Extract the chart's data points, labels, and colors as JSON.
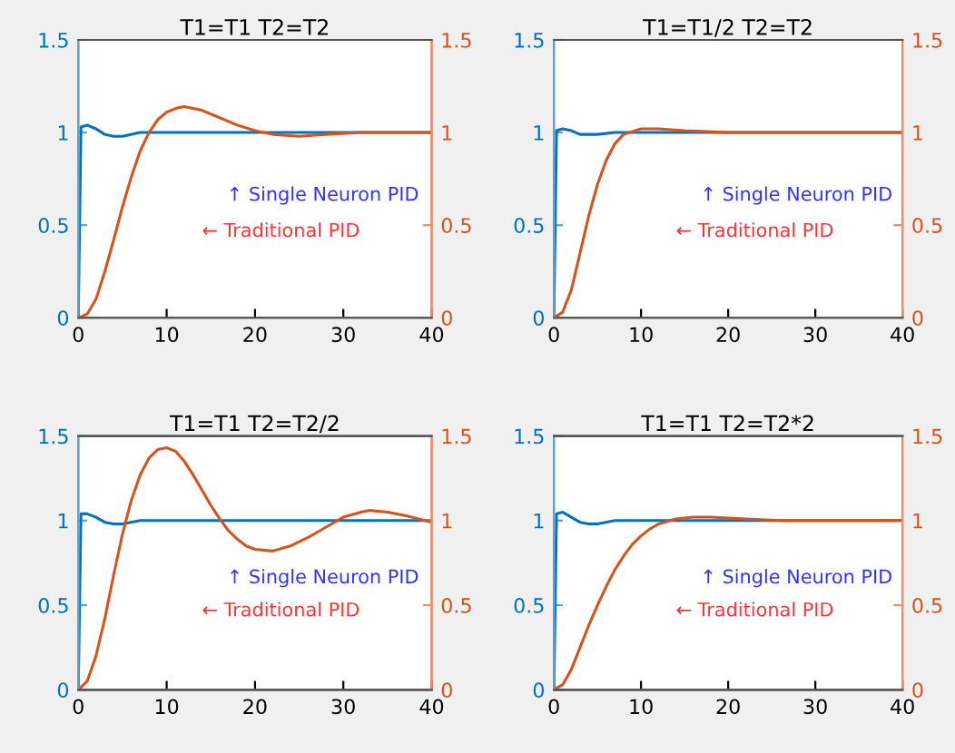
{
  "chart_data": [
    {
      "type": "line",
      "title": "T1=T1 T2=T2",
      "xlim": [
        0,
        40
      ],
      "xticks": [
        0,
        10,
        20,
        30,
        40
      ],
      "ylim": [
        0,
        1.5
      ],
      "yticks": [
        0,
        0.5,
        1,
        1.5
      ],
      "y2lim": [
        0,
        1.5
      ],
      "y2ticks": [
        0,
        0.5,
        1,
        1.5
      ],
      "annotations": [
        "↑ Single Neuron PID",
        "← Traditional PID"
      ],
      "series": [
        {
          "color": "#0072bd",
          "x": [
            0,
            0.3,
            1,
            2,
            3,
            4,
            5,
            7,
            10,
            40
          ],
          "values": [
            0,
            1.03,
            1.04,
            1.02,
            0.99,
            0.98,
            0.98,
            1.0,
            1.0,
            1.0
          ]
        },
        {
          "color": "#d95319",
          "axis": "y2",
          "x": [
            0,
            1,
            2,
            3,
            4,
            5,
            6,
            7,
            8,
            9,
            10,
            11,
            12,
            13,
            14,
            16,
            18,
            20,
            22,
            25,
            28,
            32,
            40
          ],
          "values": [
            0,
            0.02,
            0.1,
            0.25,
            0.42,
            0.6,
            0.76,
            0.9,
            1.0,
            1.07,
            1.11,
            1.13,
            1.14,
            1.13,
            1.12,
            1.08,
            1.04,
            1.01,
            0.99,
            0.98,
            0.99,
            1.0,
            1.0
          ]
        }
      ]
    },
    {
      "type": "line",
      "title": "T1=T1/2 T2=T2",
      "xlim": [
        0,
        40
      ],
      "xticks": [
        0,
        10,
        20,
        30,
        40
      ],
      "ylim": [
        0,
        1.5
      ],
      "yticks": [
        0,
        0.5,
        1,
        1.5
      ],
      "y2lim": [
        0,
        1.5
      ],
      "y2ticks": [
        0,
        0.5,
        1,
        1.5
      ],
      "annotations": [
        "↑ Single Neuron PID",
        "← Traditional PID"
      ],
      "series": [
        {
          "color": "#0072bd",
          "x": [
            0,
            0.3,
            1,
            2,
            3,
            4,
            5,
            7,
            10,
            40
          ],
          "values": [
            0,
            1.01,
            1.02,
            1.01,
            0.99,
            0.99,
            0.99,
            1.0,
            1.0,
            1.0
          ]
        },
        {
          "color": "#d95319",
          "axis": "y2",
          "x": [
            0,
            1,
            2,
            3,
            4,
            5,
            6,
            7,
            8,
            10,
            12,
            15,
            20,
            40
          ],
          "values": [
            0,
            0.03,
            0.15,
            0.35,
            0.55,
            0.72,
            0.85,
            0.94,
            0.99,
            1.02,
            1.02,
            1.01,
            1.0,
            1.0
          ]
        }
      ]
    },
    {
      "type": "line",
      "title": "T1=T1 T2=T2/2",
      "xlim": [
        0,
        40
      ],
      "xticks": [
        0,
        10,
        20,
        30,
        40
      ],
      "ylim": [
        0,
        1.5
      ],
      "yticks": [
        0,
        0.5,
        1,
        1.5
      ],
      "y2lim": [
        0,
        1.5
      ],
      "y2ticks": [
        0,
        0.5,
        1,
        1.5
      ],
      "annotations": [
        "↑ Single Neuron PID",
        "← Traditional PID"
      ],
      "series": [
        {
          "color": "#0072bd",
          "x": [
            0,
            0.3,
            1,
            2,
            3,
            4,
            5,
            7,
            10,
            40
          ],
          "values": [
            0,
            1.04,
            1.04,
            1.02,
            0.99,
            0.98,
            0.98,
            1.0,
            1.0,
            1.0
          ]
        },
        {
          "color": "#d95319",
          "axis": "y2",
          "x": [
            0,
            1,
            2,
            3,
            4,
            5,
            6,
            7,
            8,
            9,
            10,
            11,
            12,
            13,
            14,
            15,
            16,
            17,
            18,
            19,
            20,
            22,
            24,
            26,
            28,
            30,
            32,
            33,
            35,
            37,
            40
          ],
          "values": [
            0,
            0.05,
            0.2,
            0.42,
            0.68,
            0.92,
            1.12,
            1.27,
            1.37,
            1.42,
            1.43,
            1.41,
            1.35,
            1.27,
            1.18,
            1.09,
            1.01,
            0.94,
            0.89,
            0.85,
            0.83,
            0.82,
            0.85,
            0.9,
            0.96,
            1.02,
            1.05,
            1.06,
            1.05,
            1.03,
            0.99
          ]
        }
      ]
    },
    {
      "type": "line",
      "title": "T1=T1 T2=T2*2",
      "xlim": [
        0,
        40
      ],
      "xticks": [
        0,
        10,
        20,
        30,
        40
      ],
      "ylim": [
        0,
        1.5
      ],
      "yticks": [
        0,
        0.5,
        1,
        1.5
      ],
      "y2lim": [
        0,
        1.5
      ],
      "y2ticks": [
        0,
        0.5,
        1,
        1.5
      ],
      "annotations": [
        "↑ Single Neuron PID",
        "← Traditional PID"
      ],
      "series": [
        {
          "color": "#0072bd",
          "x": [
            0,
            0.3,
            1,
            2,
            3,
            4,
            5,
            7,
            10,
            40
          ],
          "values": [
            0,
            1.04,
            1.05,
            1.02,
            0.99,
            0.98,
            0.98,
            1.0,
            1.0,
            1.0
          ]
        },
        {
          "color": "#d95319",
          "axis": "y2",
          "x": [
            0,
            1,
            2,
            3,
            4,
            5,
            6,
            7,
            8,
            9,
            10,
            11,
            12,
            14,
            16,
            18,
            22,
            26,
            40
          ],
          "values": [
            0,
            0.03,
            0.12,
            0.25,
            0.38,
            0.5,
            0.61,
            0.71,
            0.79,
            0.86,
            0.91,
            0.95,
            0.98,
            1.01,
            1.02,
            1.02,
            1.01,
            1.0,
            1.0
          ]
        }
      ]
    }
  ]
}
